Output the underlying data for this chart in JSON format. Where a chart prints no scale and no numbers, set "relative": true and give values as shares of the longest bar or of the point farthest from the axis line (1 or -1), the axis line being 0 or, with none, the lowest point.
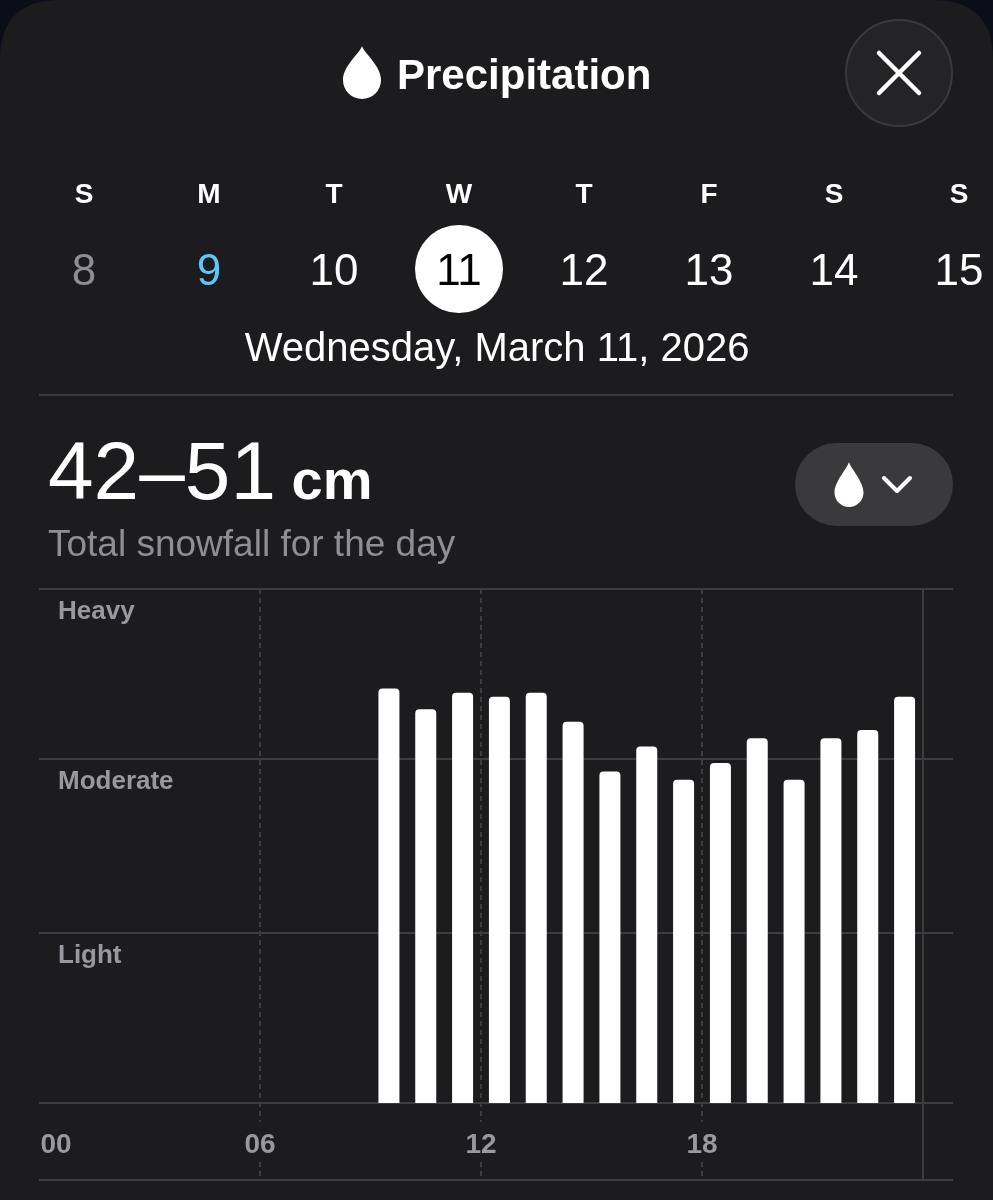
{
  "chart_data": {
    "type": "bar",
    "title": "Precipitation",
    "subtitle": "Wednesday, March 11, 2026",
    "annotations": [
      "S",
      "M",
      "T",
      "W",
      "T",
      "F",
      "S",
      "S",
      "8",
      "9",
      "10",
      "11",
      "12",
      "13",
      "14",
      "15",
      "42–51 cm",
      "Total snowfall for the day"
    ],
    "x": [
      9.5,
      10.5,
      11.5,
      12.5,
      13.5,
      14.5,
      15.5,
      16.5,
      17.5,
      18.5,
      19.5,
      20.5,
      21.5,
      22.5,
      23.5
    ],
    "values": [
      1,
      0.95,
      0.99,
      0.98,
      0.99,
      0.92,
      0.8,
      0.86,
      0.78,
      0.82,
      0.88,
      0.78,
      0.88,
      0.9,
      0.98
    ],
    "relative": true,
    "color": "#ffffff",
    "xlim": [
      0,
      24
    ],
    "xticks": [
      {
        "value": 0,
        "label": "00"
      },
      {
        "value": 6,
        "label": "06"
      },
      12,
      18
    ],
    "ref_lines": [
      {
        "axis": "y",
        "value": 1.24,
        "label": "Heavy",
        "color": "#3d3d40"
      },
      {
        "axis": "y",
        "value": 0.83,
        "label": "Moderate",
        "color": "#3d3d40"
      },
      {
        "axis": "y",
        "value": 0.41,
        "label": "Light",
        "color": "#3d3d40"
      }
    ],
    "grid": "x"
  }
}
